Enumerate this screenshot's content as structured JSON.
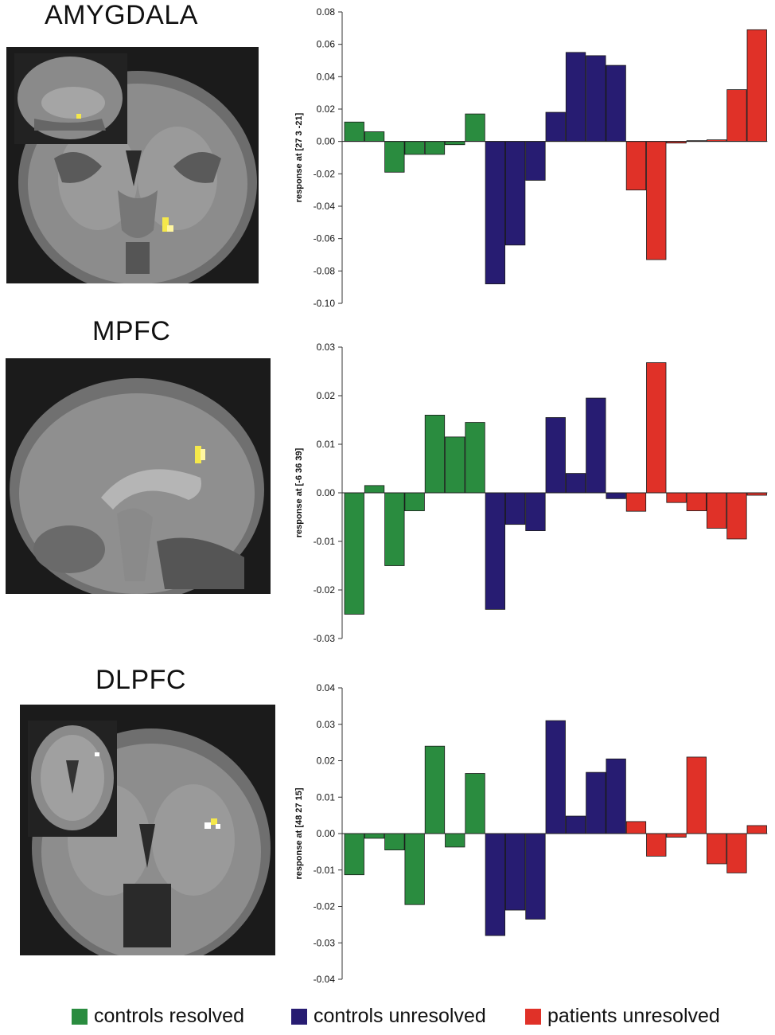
{
  "titles": [
    "AMYGDALA",
    "MPFC",
    "DLPFC"
  ],
  "legend": [
    {
      "label": "controls resolved",
      "color": "#2a8c3f"
    },
    {
      "label": "controls unresolved",
      "color": "#271c72"
    },
    {
      "label": "patients unresolved",
      "color": "#e03128"
    }
  ],
  "chart_data": [
    {
      "type": "bar",
      "title": "AMYGDALA",
      "ylabel": "response at [27 3 -21]",
      "ylim": [
        -0.1,
        0.08
      ],
      "yticks": [
        "0.08",
        "0.06",
        "0.04",
        "0.02",
        "0.00",
        "-0.02",
        "-0.04",
        "-0.06",
        "-0.08",
        "-0.10"
      ],
      "tick_values": [
        0.08,
        0.06,
        0.04,
        0.02,
        0.0,
        -0.02,
        -0.04,
        -0.06,
        -0.08,
        -0.1
      ],
      "series": [
        {
          "name": "controls resolved",
          "values": [
            0.012,
            0.006,
            -0.019,
            -0.008,
            -0.008,
            -0.002,
            0.017
          ]
        },
        {
          "name": "controls unresolved",
          "values": [
            -0.088,
            -0.064,
            -0.024,
            0.018,
            0.055,
            0.053,
            0.047
          ]
        },
        {
          "name": "patients unresolved",
          "values": [
            -0.03,
            -0.073,
            -0.001,
            0.0005,
            0.001,
            0.032,
            0.069
          ]
        }
      ]
    },
    {
      "type": "bar",
      "title": "MPFC",
      "ylabel": "response at [-6 36 39]",
      "ylim": [
        -0.03,
        0.03
      ],
      "yticks": [
        "0.03",
        "0.02",
        "0.01",
        "0.00",
        "-0.01",
        "-0.02",
        "-0.03"
      ],
      "tick_values": [
        0.03,
        0.02,
        0.01,
        0.0,
        -0.01,
        -0.02,
        -0.03
      ],
      "series": [
        {
          "name": "controls resolved",
          "values": [
            -0.025,
            0.0015,
            -0.015,
            -0.0037,
            0.016,
            0.0115,
            0.0145
          ]
        },
        {
          "name": "controls unresolved",
          "values": [
            -0.024,
            -0.0065,
            -0.0078,
            0.0155,
            0.004,
            0.0195,
            -0.0012
          ]
        },
        {
          "name": "patients unresolved",
          "values": [
            -0.0038,
            0.0268,
            -0.002,
            -0.0037,
            -0.0073,
            -0.0095,
            -0.0005
          ]
        }
      ]
    },
    {
      "type": "bar",
      "title": "DLPFC",
      "ylabel": "response at [48 27 15]",
      "ylim": [
        -0.04,
        0.04
      ],
      "yticks": [
        "0.04",
        "0.03",
        "0.02",
        "0.01",
        "0.00",
        "-0.01",
        "-0.02",
        "-0.03",
        "-0.04"
      ],
      "tick_values": [
        0.04,
        0.03,
        0.02,
        0.01,
        0.0,
        -0.01,
        -0.02,
        -0.03,
        -0.04
      ],
      "series": [
        {
          "name": "controls resolved",
          "values": [
            -0.0113,
            -0.0013,
            -0.0045,
            -0.0195,
            0.024,
            -0.0037,
            0.0165
          ]
        },
        {
          "name": "controls unresolved",
          "values": [
            -0.028,
            -0.021,
            -0.0235,
            0.031,
            0.0048,
            0.0168,
            0.0205
          ]
        },
        {
          "name": "patients unresolved",
          "values": [
            0.0033,
            -0.0062,
            -0.001,
            0.021,
            -0.0083,
            -0.0108,
            0.0022
          ]
        }
      ]
    }
  ]
}
